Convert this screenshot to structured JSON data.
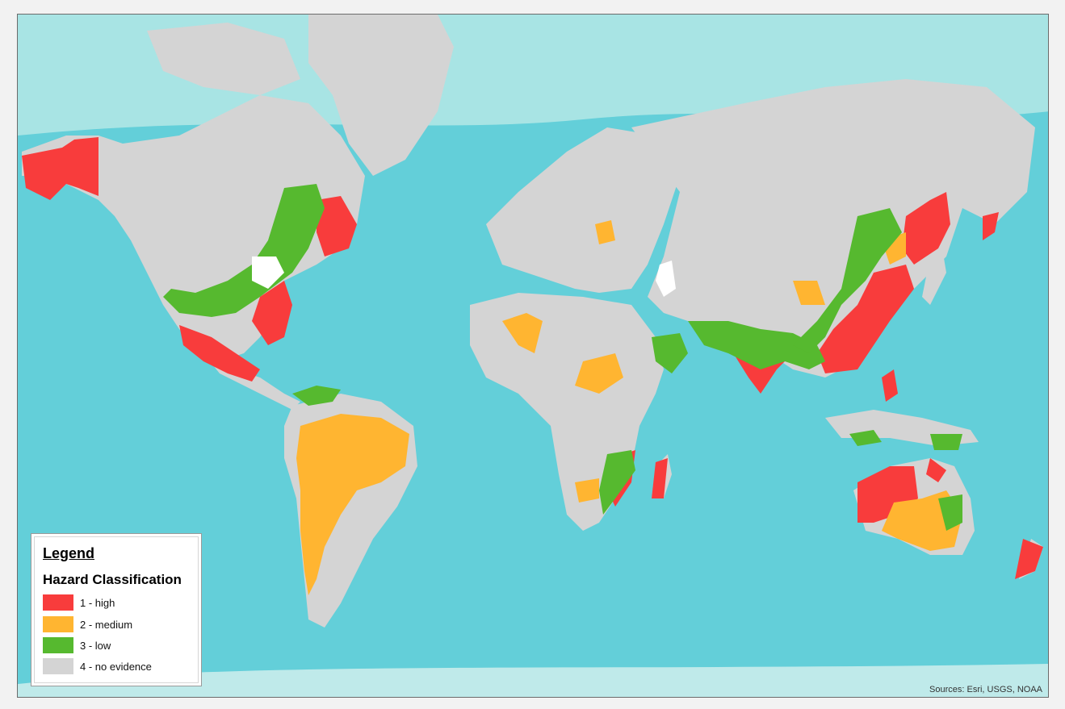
{
  "legend": {
    "title": "Legend",
    "subtitle": "Hazard Classification",
    "items": [
      {
        "label": "1 - high",
        "color": "#f83c3c"
      },
      {
        "label": "2 - medium",
        "color": "#ffb531"
      },
      {
        "label": "3 - low",
        "color": "#56b92f"
      },
      {
        "label": "4 - no evidence",
        "color": "#d4d4d4"
      }
    ]
  },
  "attribution": "Sources: Esri, USGS, NOAA",
  "colors": {
    "ocean": "#63cfd9",
    "shelf": "#a8e4e4",
    "land": "#d4d4d4",
    "lake": "#ffffff"
  }
}
